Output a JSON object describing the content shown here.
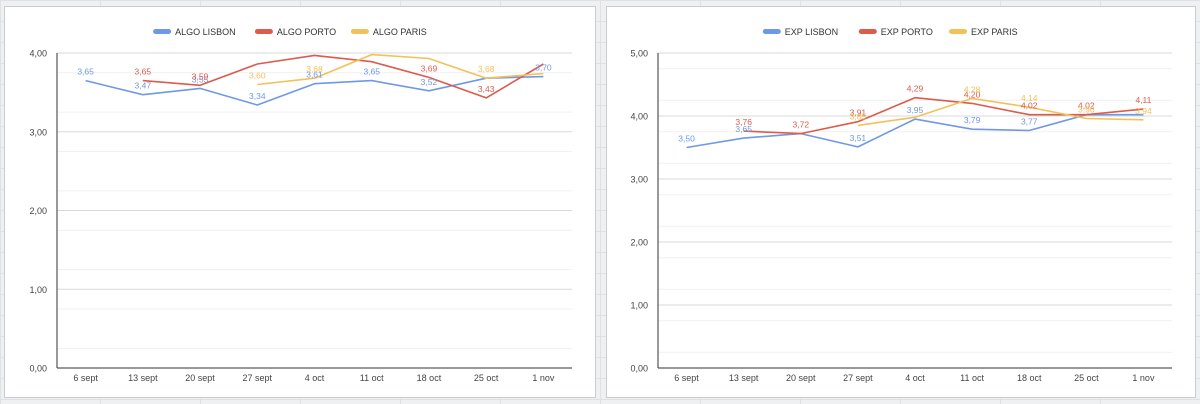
{
  "chart_data": [
    {
      "type": "line",
      "categories": [
        "6 sept",
        "13 sept",
        "20 sept",
        "27 sept",
        "4 oct",
        "11 oct",
        "18 oct",
        "25 oct",
        "1 nov"
      ],
      "ylim": [
        0,
        4
      ],
      "yticks": [
        "0,00",
        "1,00",
        "2,00",
        "3,00",
        "4,00"
      ],
      "yticks_values": [
        0,
        1,
        2,
        3,
        4
      ],
      "grid": true,
      "legend_position": "top",
      "series": [
        {
          "name": "ALGO LISBON",
          "color": "#6f98e6",
          "values": [
            3.65,
            3.47,
            3.55,
            3.34,
            3.61,
            3.65,
            3.52,
            3.68,
            3.7
          ],
          "labels": [
            "3,65",
            "3,47",
            "3,55",
            "3,34",
            "3,61",
            "3,65",
            "3,52",
            "",
            "3,70"
          ]
        },
        {
          "name": "ALGO PORTO",
          "color": "#dc5b4c",
          "values": [
            null,
            3.65,
            3.59,
            3.86,
            3.97,
            3.89,
            3.69,
            3.43,
            3.86
          ],
          "labels": [
            "",
            "3,65",
            "3,59",
            "",
            "",
            "",
            "3,69",
            "3,43",
            ""
          ]
        },
        {
          "name": "ALGO PARIS",
          "color": "#f2c15a",
          "values": [
            null,
            null,
            null,
            3.6,
            3.68,
            3.98,
            3.93,
            3.68,
            3.74
          ],
          "labels": [
            "",
            "",
            "",
            "3,60",
            "3,68",
            "",
            "",
            "3,68",
            ""
          ]
        }
      ]
    },
    {
      "type": "line",
      "categories": [
        "6 sept",
        "13 sept",
        "20 sept",
        "27 sept",
        "4 oct",
        "11 oct",
        "18 oct",
        "25 oct",
        "1 nov"
      ],
      "ylim": [
        0,
        5
      ],
      "yticks": [
        "0,00",
        "1,00",
        "2,00",
        "3,00",
        "4,00",
        "5,00"
      ],
      "yticks_values": [
        0,
        1,
        2,
        3,
        4,
        5
      ],
      "grid": true,
      "legend_position": "top",
      "series": [
        {
          "name": "EXP LISBON",
          "color": "#6f98e6",
          "values": [
            3.5,
            3.65,
            3.72,
            3.51,
            3.95,
            3.79,
            3.77,
            4.02,
            4.02
          ],
          "labels": [
            "3,50",
            "3,65",
            "",
            "3,51",
            "3,95",
            "3,79",
            "3,77",
            "",
            ""
          ]
        },
        {
          "name": "EXP PORTO",
          "color": "#dc5b4c",
          "values": [
            null,
            3.76,
            3.72,
            3.91,
            4.29,
            4.2,
            4.02,
            4.02,
            4.11
          ],
          "labels": [
            "",
            "3,76",
            "3,72",
            "3,91",
            "4,29",
            "4,20",
            "4,02",
            "4,02",
            "4,11"
          ]
        },
        {
          "name": "EXP PARIS",
          "color": "#f2c15a",
          "values": [
            null,
            null,
            null,
            3.85,
            3.98,
            4.28,
            4.14,
            3.96,
            3.94
          ],
          "labels": [
            "",
            "",
            "",
            "3,85",
            "",
            "4,28",
            "4,14",
            "3,96",
            "3,94"
          ]
        }
      ]
    }
  ]
}
